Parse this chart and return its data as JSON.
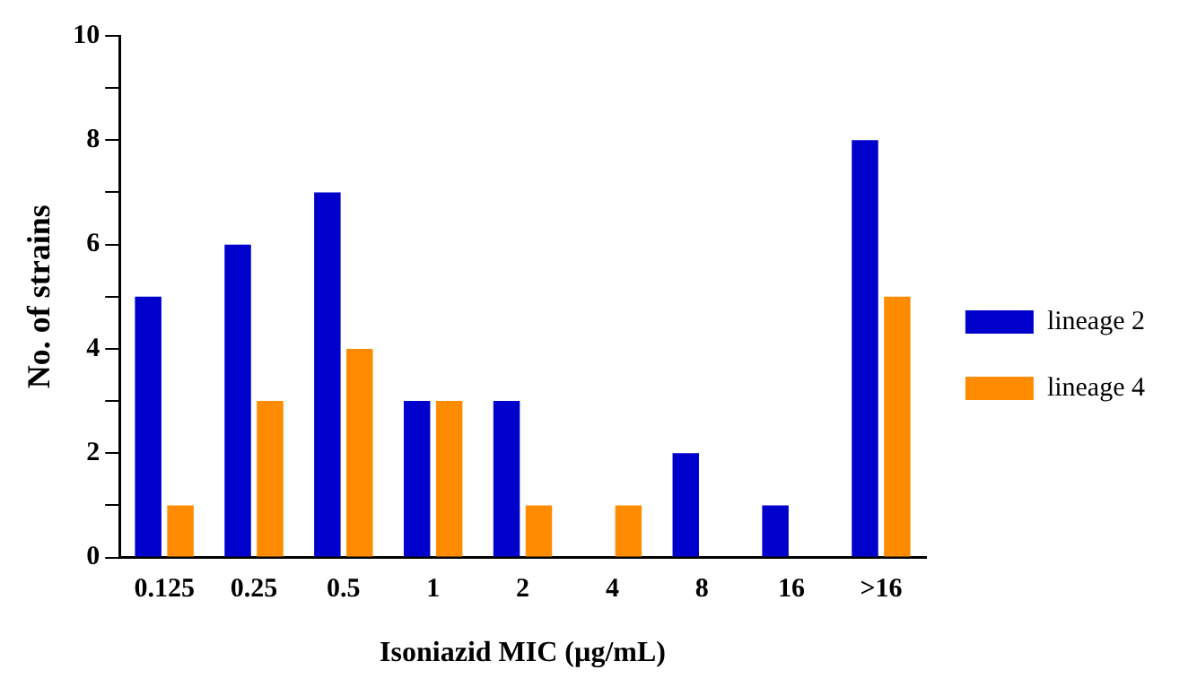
{
  "chart_data": {
    "type": "bar",
    "xlabel": "Isoniazid MIC (µg/mL)",
    "ylabel": "No. of strains",
    "categories": [
      "0.125",
      "0.25",
      "0.5",
      "1",
      "2",
      "4",
      "8",
      "16",
      ">16"
    ],
    "series": [
      {
        "name": "lineage 2",
        "color": "#0000cc",
        "values": [
          5,
          6,
          7,
          3,
          3,
          0,
          2,
          1,
          8
        ]
      },
      {
        "name": "lineage 4",
        "color": "#ff8c00",
        "values": [
          1,
          3,
          4,
          3,
          1,
          1,
          0,
          0,
          5
        ]
      }
    ],
    "ylim": [
      0,
      10
    ],
    "yticks": [
      0,
      {
        "value": 1,
        "label": null
      },
      2,
      {
        "value": 3,
        "label": null
      },
      4,
      {
        "value": 5,
        "label": null
      },
      6,
      {
        "value": 7,
        "label": null
      },
      8,
      {
        "value": 9,
        "label": null
      },
      10
    ],
    "grid": false,
    "legend": "right"
  }
}
